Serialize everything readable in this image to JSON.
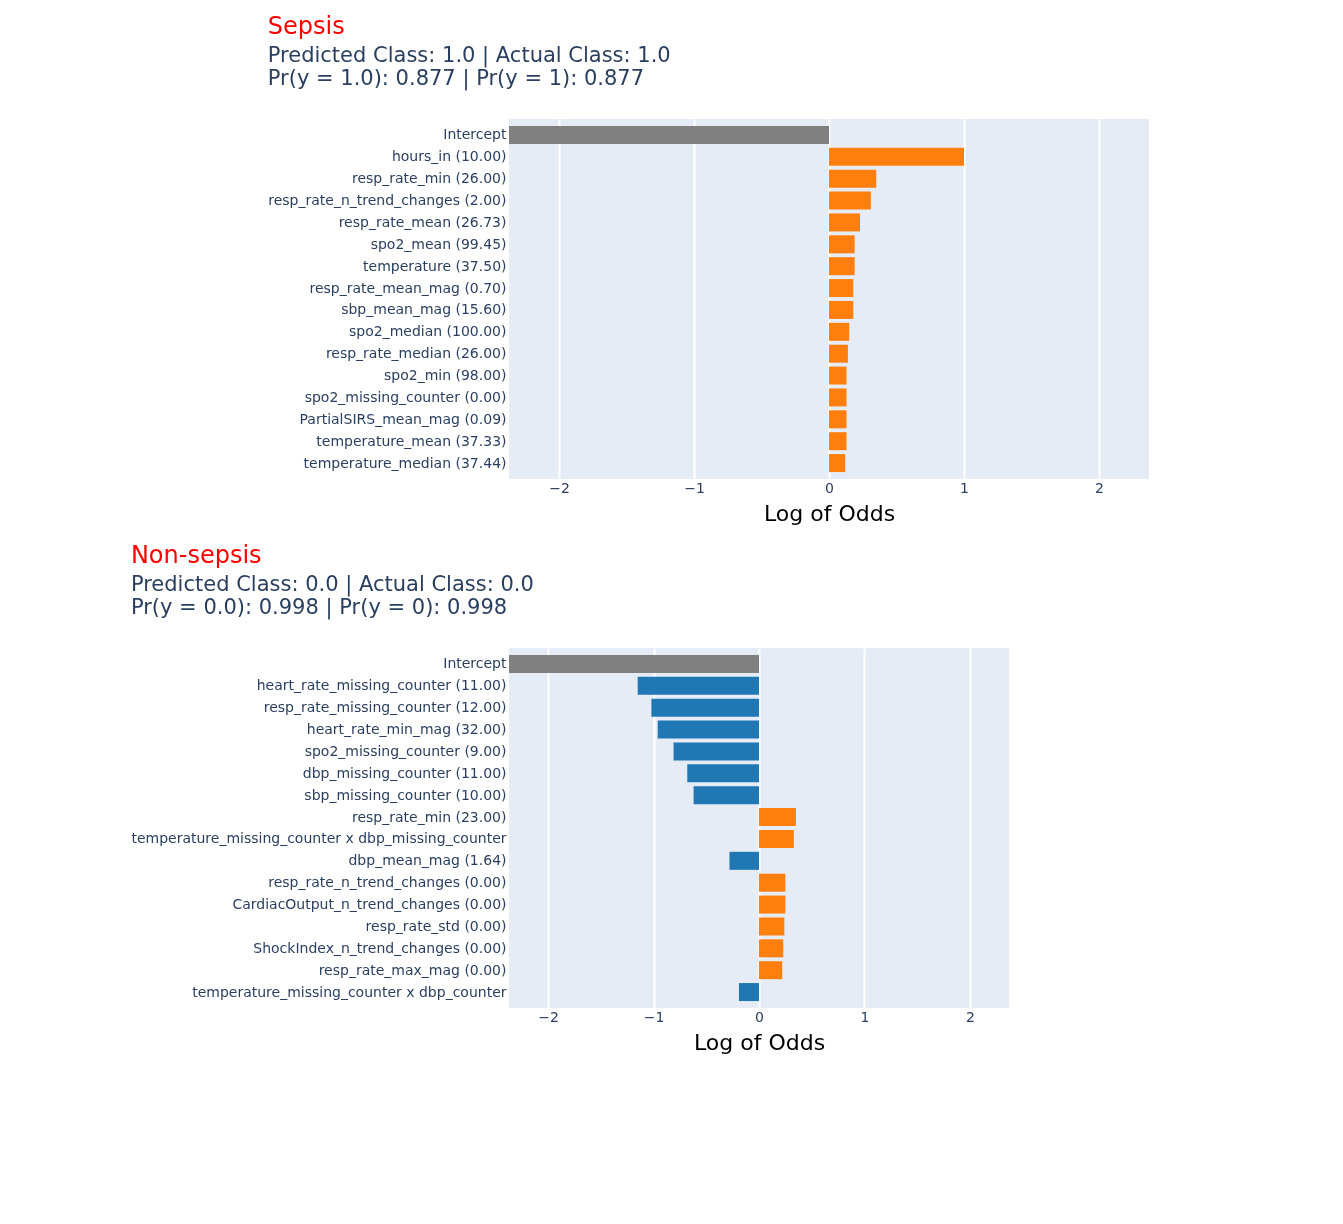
{
  "chart_data": [
    {
      "type": "bar",
      "orientation": "horizontal",
      "title": "Sepsis",
      "subtitle": [
        "Predicted Class: 1.0 | Actual Class: 1.0",
        "Pr(y = 1.0): 0.877 | Pr(y = 1): 0.877"
      ],
      "xlabel": "Log of Odds",
      "categories": [
        "Intercept",
        "hours_in (10.00)",
        "resp_rate_min (26.00)",
        "resp_rate_n_trend_changes (2.00)",
        "resp_rate_mean (26.73)",
        "spo2_mean (99.45)",
        "temperature (37.50)",
        "resp_rate_mean_mag (0.70)",
        "sbp_mean_mag (15.60)",
        "spo2_median (100.00)",
        "resp_rate_median (26.00)",
        "spo2_min (98.00)",
        "spo2_missing_counter (0.00)",
        "PartialSIRS_mean_mag (0.09)",
        "temperature_mean (37.33)",
        "temperature_median (37.44)"
      ],
      "values": [
        -2.37,
        1.0,
        0.35,
        0.31,
        0.23,
        0.19,
        0.19,
        0.18,
        0.18,
        0.15,
        0.14,
        0.13,
        0.13,
        0.13,
        0.13,
        0.12
      ],
      "colors": [
        "#808080",
        "#ff7f0e",
        "#ff7f0e",
        "#ff7f0e",
        "#ff7f0e",
        "#ff7f0e",
        "#ff7f0e",
        "#ff7f0e",
        "#ff7f0e",
        "#ff7f0e",
        "#ff7f0e",
        "#ff7f0e",
        "#ff7f0e",
        "#ff7f0e",
        "#ff7f0e",
        "#ff7f0e"
      ],
      "xlim": [
        -2.37,
        2.37
      ],
      "xticks": [
        -2,
        -1,
        0,
        1,
        2
      ],
      "grid": "x"
    },
    {
      "type": "bar",
      "orientation": "horizontal",
      "title": "Non-sepsis",
      "subtitle": [
        "Predicted Class: 0.0 | Actual Class: 0.0",
        "Pr(y = 0.0): 0.998 | Pr(y = 0): 0.998"
      ],
      "xlabel": "Log of Odds",
      "categories": [
        "Intercept",
        "heart_rate_missing_counter (11.00)",
        "resp_rate_missing_counter (12.00)",
        "heart_rate_min_mag (32.00)",
        "spo2_missing_counter (9.00)",
        "dbp_missing_counter (11.00)",
        "sbp_missing_counter (10.00)",
        "resp_rate_min (23.00)",
        "temperature_missing_counter x dbp_missing_counter",
        "dbp_mean_mag (1.64)",
        "resp_rate_n_trend_changes (0.00)",
        "CardiacOutput_n_trend_changes (0.00)",
        "resp_rate_std (0.00)",
        "ShockIndex_n_trend_changes (0.00)",
        "resp_rate_max_mag (0.00)",
        "temperature_missing_counter x dbp_counter"
      ],
      "values": [
        -2.37,
        -1.15,
        -1.02,
        -0.96,
        -0.81,
        -0.68,
        -0.62,
        0.35,
        0.33,
        -0.28,
        0.25,
        0.25,
        0.24,
        0.23,
        0.22,
        -0.19
      ],
      "colors": [
        "#808080",
        "#1f77b4",
        "#1f77b4",
        "#1f77b4",
        "#1f77b4",
        "#1f77b4",
        "#1f77b4",
        "#ff7f0e",
        "#ff7f0e",
        "#1f77b4",
        "#ff7f0e",
        "#ff7f0e",
        "#ff7f0e",
        "#ff7f0e",
        "#ff7f0e",
        "#1f77b4"
      ],
      "xlim": [
        -2.37,
        2.37
      ],
      "xticks": [
        -2,
        -1,
        0,
        1,
        2
      ],
      "grid": "x"
    }
  ]
}
